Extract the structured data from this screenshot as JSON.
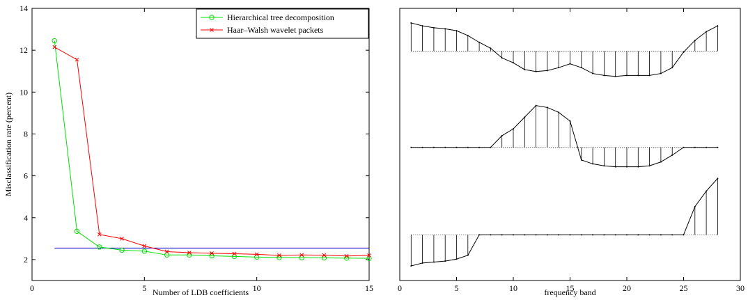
{
  "chart_data": [
    {
      "type": "line",
      "xlabel": "Number of LDB coefficients",
      "ylabel": "Misclassification rate (percent)",
      "xlim": [
        0,
        15
      ],
      "ylim": [
        1,
        14
      ],
      "xticks": [
        0,
        5,
        10,
        15
      ],
      "yticks": [
        2,
        4,
        6,
        8,
        10,
        12,
        14
      ],
      "x": [
        1,
        2,
        3,
        4,
        5,
        6,
        7,
        8,
        9,
        10,
        11,
        12,
        13,
        14,
        15
      ],
      "legend_position": "top-right",
      "series": [
        {
          "name": "Hierarchical tree decomposition",
          "color": "#00e000",
          "marker": "circle",
          "values": [
            12.45,
            3.35,
            2.6,
            2.45,
            2.4,
            2.22,
            2.22,
            2.18,
            2.15,
            2.12,
            2.1,
            2.09,
            2.08,
            2.07,
            2.06
          ]
        },
        {
          "name": "Haar–Walsh wavelet packets",
          "color": "#ff0000",
          "marker": "x",
          "values": [
            12.15,
            11.55,
            3.2,
            3.0,
            2.65,
            2.38,
            2.33,
            2.3,
            2.28,
            2.25,
            2.2,
            2.22,
            2.21,
            2.17,
            2.2
          ]
        }
      ],
      "reference_line": {
        "color": "#0000cc",
        "x": [
          1,
          15
        ],
        "y": 2.55
      }
    },
    {
      "type": "line",
      "style": "stem",
      "xlabel": "frequency band",
      "xlim": [
        0,
        30
      ],
      "xticks": [
        0,
        5,
        10,
        15,
        20,
        25,
        30
      ],
      "yticks": [],
      "x": [
        1,
        2,
        3,
        4,
        5,
        6,
        7,
        8,
        9,
        10,
        11,
        12,
        13,
        14,
        15,
        16,
        17,
        18,
        19,
        20,
        21,
        22,
        23,
        24,
        25,
        26,
        27,
        28
      ],
      "series": [
        {
          "baseline": 11.8,
          "values": [
            13.25,
            13.1,
            13.0,
            12.95,
            12.85,
            12.6,
            12.25,
            11.95,
            11.45,
            11.2,
            10.85,
            10.75,
            10.8,
            10.95,
            11.15,
            10.95,
            10.65,
            10.55,
            10.5,
            10.55,
            10.55,
            10.55,
            10.65,
            10.95,
            11.75,
            12.35,
            12.8,
            13.1
          ]
        },
        {
          "baseline": 6.85,
          "values": [
            6.85,
            6.85,
            6.85,
            6.85,
            6.85,
            6.85,
            6.85,
            6.85,
            7.45,
            7.8,
            8.4,
            9.0,
            8.9,
            8.65,
            8.2,
            6.2,
            6.0,
            5.9,
            5.85,
            5.85,
            5.85,
            5.9,
            6.1,
            6.45,
            6.85,
            6.85,
            6.85,
            6.85
          ]
        },
        {
          "baseline": 2.35,
          "values": [
            0.75,
            0.9,
            0.95,
            1.0,
            1.1,
            1.3,
            2.35,
            2.35,
            2.35,
            2.35,
            2.35,
            2.35,
            2.35,
            2.35,
            2.35,
            2.35,
            2.35,
            2.35,
            2.35,
            2.35,
            2.35,
            2.35,
            2.35,
            2.35,
            2.35,
            3.8,
            4.6,
            5.25
          ]
        }
      ]
    }
  ]
}
